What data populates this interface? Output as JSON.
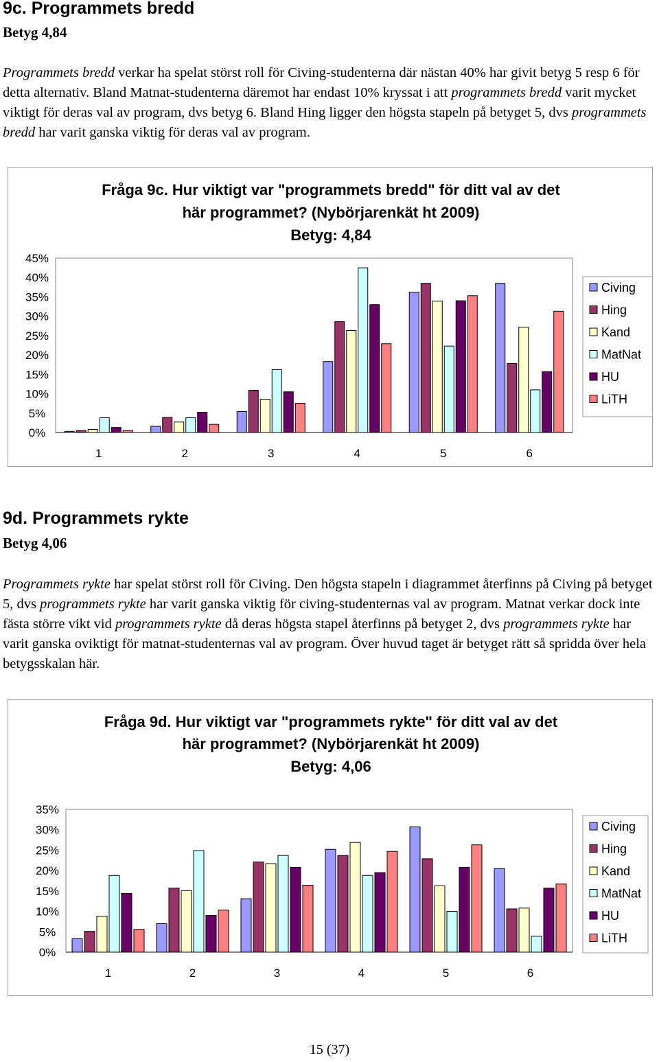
{
  "sections": [
    {
      "heading": "9c. Programmets bredd",
      "grade": "Betyg 4,84",
      "paragraph": [
        {
          "t": "Programmets bredd",
          "i": true
        },
        {
          "t": " verkar ha spelat störst roll för Civing-studenterna där nästan 40% har givit betyg 5 resp 6 för detta alternativ. Bland Matnat-studenterna däremot har endast 10% kryssat i att ",
          "i": false
        },
        {
          "t": "programmets bredd",
          "i": true
        },
        {
          "t": " varit mycket viktigt för deras val av program, dvs betyg 6. Bland Hing ligger den högsta stapeln på betyget 5, dvs ",
          "i": false
        },
        {
          "t": "programmets bredd",
          "i": true
        },
        {
          "t": " har varit ganska viktig för deras val av program.",
          "i": false
        }
      ]
    },
    {
      "heading": "9d. Programmets rykte",
      "grade": "Betyg 4,06",
      "paragraph": [
        {
          "t": "Programmets rykte",
          "i": true
        },
        {
          "t": " har spelat störst roll för Civing. Den högsta stapeln i diagrammet återfinns på Civing på betyget 5, dvs ",
          "i": false
        },
        {
          "t": "programmets rykte",
          "i": true
        },
        {
          "t": " har varit ganska viktig för civing-studenternas val av program. Matnat verkar dock inte fästa större vikt vid ",
          "i": false
        },
        {
          "t": "programmets rykte",
          "i": true
        },
        {
          "t": " då deras högsta stapel återfinns på betyget 2, dvs ",
          "i": false
        },
        {
          "t": "programmets rykte",
          "i": true
        },
        {
          "t": " har varit ganska oviktigt för matnat-studenternas val av program. Över huvud taget är betyget rätt så spridda över hela betygsskalan här.",
          "i": false
        }
      ]
    }
  ],
  "colors": {
    "Civing": "#9999ff",
    "Hing": "#993366",
    "Kand": "#ffffcc",
    "MatNat": "#ccffff",
    "HU": "#660066",
    "LiTH": "#ff8080"
  },
  "chart_data": [
    {
      "type": "bar",
      "title": [
        "Fråga 9c. Hur viktigt var \"programmets bredd\" för ditt val av det",
        "här programmet? (Nybörjarenkät ht 2009)",
        "Betyg: 4,84"
      ],
      "categories": [
        "1",
        "2",
        "3",
        "4",
        "5",
        "6"
      ],
      "ylim": [
        0,
        45
      ],
      "yticks": [
        "0%",
        "5%",
        "10%",
        "15%",
        "20%",
        "25%",
        "30%",
        "35%",
        "40%",
        "45%"
      ],
      "legend_position": "right",
      "series": [
        {
          "name": "Civing",
          "values": [
            0.3,
            1.6,
            5.4,
            18.3,
            36.2,
            38.5
          ]
        },
        {
          "name": "Hing",
          "values": [
            0.5,
            3.9,
            10.9,
            28.6,
            38.5,
            17.8
          ]
        },
        {
          "name": "Kand",
          "values": [
            0.8,
            2.7,
            8.6,
            26.3,
            33.9,
            27.2
          ]
        },
        {
          "name": "MatNat",
          "values": [
            3.8,
            3.8,
            16.2,
            42.5,
            22.3,
            11.0
          ]
        },
        {
          "name": "HU",
          "values": [
            1.3,
            5.2,
            10.5,
            33.0,
            34.0,
            15.7
          ]
        },
        {
          "name": "LiTH",
          "values": [
            0.5,
            2.1,
            7.5,
            22.9,
            35.3,
            31.3
          ]
        }
      ]
    },
    {
      "type": "bar",
      "title": [
        "Fråga 9d. Hur viktigt var \"programmets rykte\" för ditt val av det",
        "här programmet? (Nybörjarenkät ht 2009)",
        "Betyg: 4,06"
      ],
      "categories": [
        "1",
        "2",
        "3",
        "4",
        "5",
        "6"
      ],
      "ylim": [
        0,
        35
      ],
      "yticks": [
        "0%",
        "5%",
        "10%",
        "15%",
        "20%",
        "25%",
        "30%",
        "35%"
      ],
      "legend_position": "right",
      "series": [
        {
          "name": "Civing",
          "values": [
            3.3,
            7.0,
            13.1,
            25.2,
            30.7,
            20.5
          ]
        },
        {
          "name": "Hing",
          "values": [
            5.1,
            15.7,
            22.1,
            23.7,
            22.9,
            10.6
          ]
        },
        {
          "name": "Kand",
          "values": [
            8.8,
            15.1,
            21.7,
            26.9,
            16.3,
            10.8
          ]
        },
        {
          "name": "MatNat",
          "values": [
            18.8,
            24.9,
            23.7,
            18.8,
            10.0,
            3.9
          ]
        },
        {
          "name": "HU",
          "values": [
            14.4,
            9.0,
            20.8,
            19.5,
            20.8,
            15.7
          ]
        },
        {
          "name": "LiTH",
          "values": [
            5.6,
            10.3,
            16.4,
            24.7,
            26.3,
            16.7
          ]
        }
      ]
    }
  ],
  "footer": "15 (37)"
}
